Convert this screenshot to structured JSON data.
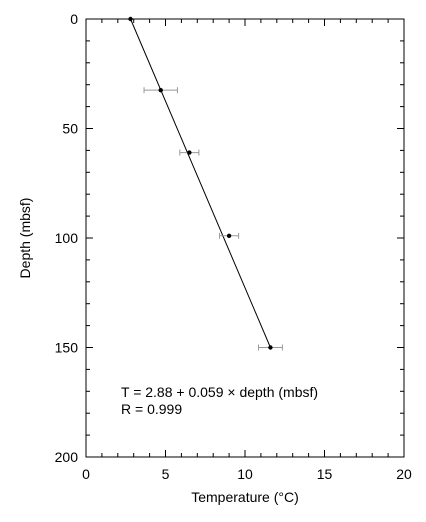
{
  "chart_data": {
    "type": "scatter",
    "title": "",
    "xlabel": "Temperature (°C)",
    "ylabel": "Depth (mbsf)",
    "xlim": [
      0,
      20
    ],
    "ylim": [
      0,
      200
    ],
    "y_inverted": true,
    "grid": false,
    "x_ticks": [
      0,
      5,
      10,
      15,
      20
    ],
    "y_ticks": [
      0,
      50,
      100,
      150,
      200
    ],
    "points": [
      {
        "x": 2.8,
        "y": 0,
        "xerr": 0
      },
      {
        "x": 4.7,
        "y": 32.5,
        "xerr": 1.05
      },
      {
        "x": 6.5,
        "y": 61,
        "xerr": 0.6
      },
      {
        "x": 9.0,
        "y": 99,
        "xerr": 0.6
      },
      {
        "x": 11.6,
        "y": 150,
        "xerr": 0.75
      }
    ],
    "fit_line": {
      "intercept": 2.88,
      "slope": 0.059
    },
    "annotations": [
      "T = 2.88 + 0.059 × depth (mbsf)",
      "R = 0.999"
    ]
  }
}
